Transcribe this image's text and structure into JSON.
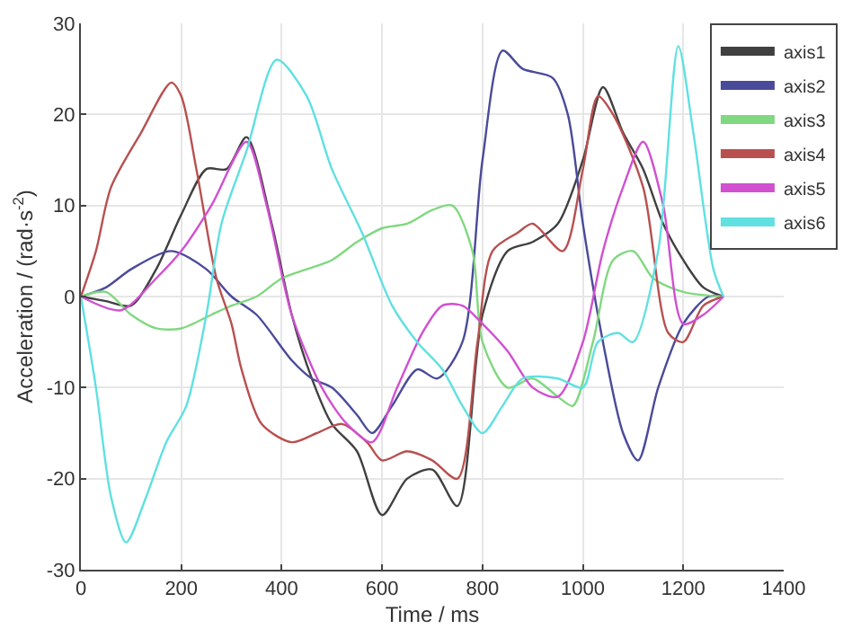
{
  "chart_data": {
    "type": "line",
    "xlabel": "Time / ms",
    "ylabel": "Acceleration / (rad·s$^{-2}$)",
    "xlim": [
      0,
      1400
    ],
    "xticks": [
      0,
      200,
      400,
      600,
      800,
      1000,
      1200,
      1400
    ],
    "ylim": [
      -30,
      30
    ],
    "yticks": [
      -30,
      -20,
      -10,
      0,
      10,
      20,
      30
    ],
    "grid": true,
    "legend": "top right",
    "marker": "none",
    "line_style": "solid",
    "series": [
      {
        "name": "axis1",
        "color": "#404040",
        "x": [
          0,
          50,
          100,
          150,
          200,
          250,
          290,
          330,
          380,
          420,
          460,
          500,
          550,
          600,
          650,
          700,
          750,
          800,
          850,
          900,
          950,
          1000,
          1040,
          1080,
          1120,
          1160,
          1200,
          1240,
          1280
        ],
        "values": [
          0,
          -0.5,
          -1,
          3,
          9,
          14,
          14,
          17.5,
          8,
          -2,
          -9,
          -14,
          -17,
          -24,
          -20,
          -19,
          -23,
          -2,
          5,
          6,
          8,
          15,
          23,
          18,
          14,
          8,
          4,
          1,
          0
        ]
      },
      {
        "name": "axis2",
        "color": "#4a4a9a",
        "x": [
          0,
          50,
          100,
          180,
          250,
          300,
          350,
          420,
          460,
          500,
          550,
          580,
          620,
          670,
          710,
          760,
          800,
          840,
          880,
          940,
          970,
          1000,
          1040,
          1080,
          1110,
          1150,
          1200,
          1250,
          1280
        ],
        "values": [
          0,
          1,
          3,
          5,
          3,
          0,
          -2,
          -7,
          -9,
          -10,
          -13,
          -15,
          -12,
          -8,
          -9,
          -5,
          15,
          27,
          25,
          24,
          20,
          8,
          -5,
          -15,
          -18,
          -10,
          -3,
          0,
          0
        ]
      },
      {
        "name": "axis3",
        "color": "#80d880",
        "x": [
          0,
          50,
          100,
          150,
          200,
          260,
          300,
          350,
          400,
          450,
          500,
          550,
          600,
          650,
          700,
          740,
          780,
          800,
          850,
          900,
          950,
          980,
          1020,
          1060,
          1100,
          1140,
          1200,
          1280
        ],
        "values": [
          0,
          0.5,
          -2,
          -3.5,
          -3.5,
          -2,
          -1,
          0,
          2,
          3,
          4,
          6,
          7.5,
          8,
          9.5,
          10,
          5,
          -5,
          -10,
          -9,
          -11,
          -12,
          -5,
          4,
          5,
          2,
          0.5,
          0
        ]
      },
      {
        "name": "axis4",
        "color": "#b85050",
        "x": [
          0,
          30,
          60,
          120,
          180,
          200,
          230,
          270,
          300,
          320,
          360,
          420,
          470,
          520,
          570,
          600,
          650,
          700,
          750,
          790,
          820,
          870,
          900,
          960,
          1000,
          1030,
          1060,
          1120,
          1170,
          1200,
          1240,
          1280
        ],
        "values": [
          0,
          5,
          12,
          18,
          23.5,
          22,
          14,
          2,
          -3,
          -8,
          -14,
          -16,
          -15,
          -14,
          -16,
          -18,
          -17,
          -18,
          -20,
          -5,
          5,
          7,
          8,
          5,
          14,
          22,
          20,
          12,
          -4,
          -5,
          -1,
          0
        ]
      },
      {
        "name": "axis5",
        "color": "#d050d0",
        "x": [
          0,
          80,
          150,
          200,
          260,
          330,
          370,
          420,
          480,
          530,
          580,
          630,
          680,
          720,
          760,
          800,
          850,
          900,
          950,
          1000,
          1040,
          1080,
          1120,
          1160,
          1200,
          1240,
          1280
        ],
        "values": [
          0,
          -1.5,
          2,
          5,
          10,
          17,
          10,
          -2,
          -10,
          -14,
          -16,
          -10,
          -4,
          -1,
          -1,
          -3,
          -6,
          -10,
          -11,
          -5,
          5,
          12,
          17,
          10,
          -3,
          -2,
          0
        ]
      },
      {
        "name": "axis6",
        "color": "#60e0e0",
        "x": [
          0,
          30,
          60,
          90,
          130,
          170,
          210,
          250,
          280,
          330,
          390,
          450,
          500,
          560,
          620,
          670,
          720,
          760,
          800,
          840,
          880,
          950,
          1000,
          1030,
          1070,
          1100,
          1150,
          1190,
          1220,
          1260,
          1280
        ],
        "values": [
          0,
          -10,
          -22,
          -27,
          -22,
          -16,
          -12,
          -2,
          8,
          16,
          26,
          22,
          14,
          7,
          -1,
          -5,
          -8,
          -12,
          -15,
          -12,
          -9,
          -9,
          -10,
          -5,
          -4,
          -5,
          5,
          27.5,
          18,
          3,
          0
        ]
      }
    ]
  }
}
